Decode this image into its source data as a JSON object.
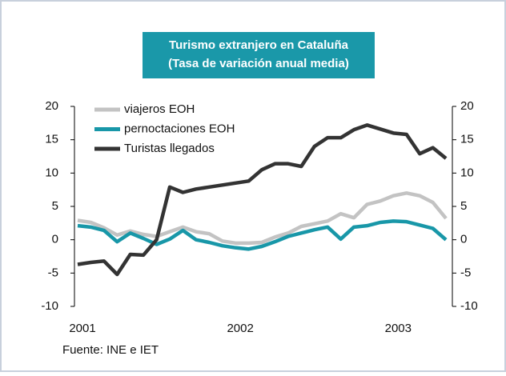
{
  "chart_data": {
    "type": "line",
    "title": "Turismo extranjero en Cataluña",
    "subtitle": "(Tasa de variación anual media)",
    "source": "Fuente: INE e IET",
    "categories": [
      "2001",
      null,
      null,
      null,
      null,
      null,
      null,
      null,
      null,
      null,
      null,
      null,
      "2002",
      null,
      null,
      null,
      null,
      null,
      null,
      null,
      null,
      null,
      null,
      null,
      "2003",
      null,
      null,
      null,
      null
    ],
    "series": [
      {
        "name": "viajeros EOH",
        "color": "#c3c3c3",
        "values": [
          2.9,
          2.6,
          1.8,
          0.7,
          1.3,
          0.8,
          0.5,
          1.2,
          1.9,
          1.2,
          0.9,
          -0.2,
          -0.5,
          -0.5,
          -0.4,
          0.4,
          1.0,
          2.0,
          2.4,
          2.8,
          3.9,
          3.3,
          5.3,
          5.8,
          6.6,
          7.0,
          6.6,
          5.6,
          3.2
        ]
      },
      {
        "name": "pernoctaciones EOH",
        "color": "#1897a8",
        "values": [
          2.1,
          1.9,
          1.4,
          -0.3,
          1.0,
          0.2,
          -0.7,
          0.1,
          1.4,
          0.0,
          -0.4,
          -0.9,
          -1.2,
          -1.4,
          -1.0,
          -0.3,
          0.5,
          1.0,
          1.5,
          1.9,
          0.1,
          1.9,
          2.1,
          2.6,
          2.8,
          2.7,
          2.2,
          1.7,
          0.0
        ]
      },
      {
        "name": "Turistas llegados",
        "color": "#333333",
        "values": [
          -3.7,
          -3.4,
          -3.2,
          -5.2,
          -2.2,
          -2.3,
          0.0,
          7.9,
          7.1,
          7.6,
          7.9,
          8.2,
          8.5,
          8.8,
          10.5,
          11.4,
          11.4,
          11.0,
          14.0,
          15.3,
          15.3,
          16.5,
          17.2,
          16.6,
          16.0,
          15.8,
          12.9,
          13.8,
          12.2
        ]
      }
    ],
    "ylim": [
      -10,
      20
    ],
    "yticks": [
      -10,
      -5,
      0,
      5,
      10,
      15,
      20
    ],
    "y2lim": [
      -10,
      20
    ],
    "y2ticks": [
      -10,
      -5,
      0,
      5,
      10,
      15,
      20
    ],
    "title_color": "#1a98a9"
  }
}
